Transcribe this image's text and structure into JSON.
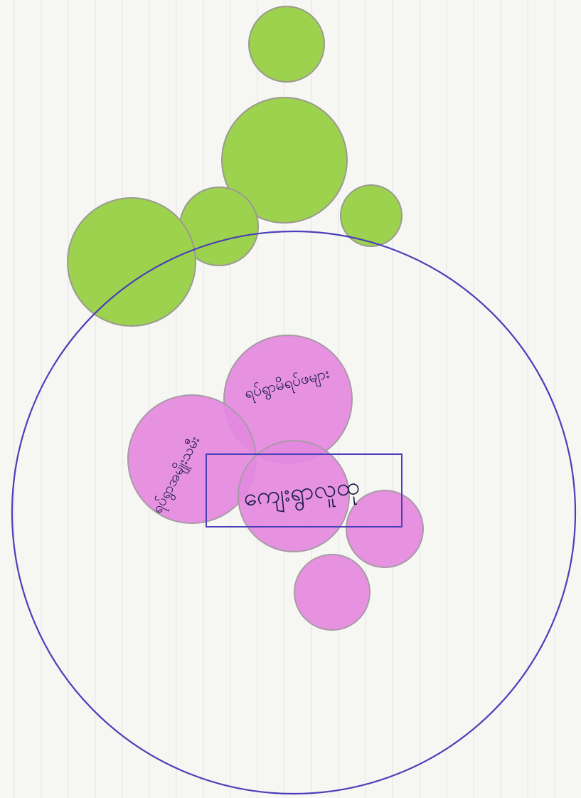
{
  "colors": {
    "paper": "#f6f6f3",
    "grid_line": "#e4e4e8",
    "boundary": "#4a3fb8",
    "outer_fill": "#9dd24e",
    "outer_stroke": "#9a9a90",
    "inner_fill": "#e489e0",
    "inner_stroke": "#a89aa6",
    "text": "#1d1d4a"
  },
  "center": {
    "label": "ကျေးရွာလူထု"
  },
  "inner_circles": [
    {
      "id": "inner-1",
      "label": "ရပ်ရွာမိရပ်ဖများ"
    },
    {
      "id": "inner-2",
      "label": "ရပ်ရွာအမျိုးသမီး"
    },
    {
      "id": "inner-3",
      "label": ""
    },
    {
      "id": "inner-4",
      "label": ""
    },
    {
      "id": "inner-5",
      "label": ""
    }
  ],
  "outer_circles": [
    {
      "id": "outer-1",
      "label": ""
    },
    {
      "id": "outer-2",
      "label": ""
    },
    {
      "id": "outer-3",
      "label": ""
    },
    {
      "id": "outer-4",
      "label": ""
    },
    {
      "id": "outer-5",
      "label": ""
    }
  ]
}
